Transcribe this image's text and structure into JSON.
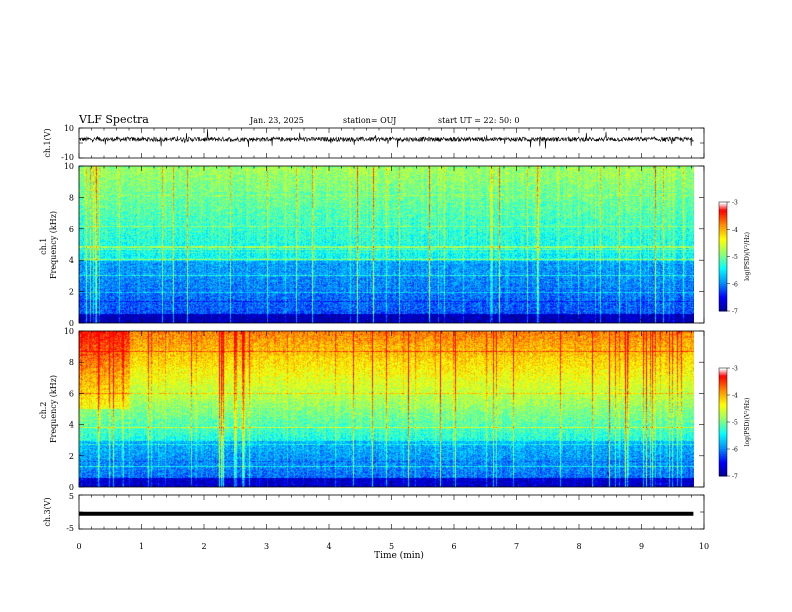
{
  "header": {
    "title": "VLF Spectra",
    "date": "Jan. 23, 2025",
    "station": "station= OUJ",
    "start": "start  UT =   22: 50: 0"
  },
  "chart_data": [
    {
      "type": "line",
      "panel": "ch1-waveform",
      "ylabel": "ch.1(V)",
      "ylim": [
        -10,
        10
      ],
      "y_tick_labels": [
        "10",
        "-10"
      ],
      "baseline": 2.5,
      "noise_amplitude": 1.5
    },
    {
      "type": "heatmap",
      "panel": "ch1-spectrogram",
      "ylabel": "ch.1\nFrequency (kHz)",
      "ylim": [
        0,
        10
      ],
      "y_tick_labels": [
        "0",
        "2",
        "4",
        "6",
        "8",
        "10"
      ],
      "colorbar": {
        "label": "log(PSD)(V²/Hz)",
        "range": [
          -7,
          -3
        ],
        "tick_labels": [
          "-3",
          "-4",
          "-5",
          "-6",
          "-7"
        ]
      }
    },
    {
      "type": "heatmap",
      "panel": "ch2-spectrogram",
      "ylabel": "ch.2\nFrequency (kHz)",
      "ylim": [
        0,
        10
      ],
      "y_tick_labels": [
        "0",
        "2",
        "4",
        "6",
        "8",
        "10"
      ],
      "colorbar": {
        "label": "log(PSD)(V²/Hz)",
        "range": [
          -7,
          -3
        ],
        "tick_labels": [
          "-3",
          "-4",
          "-5",
          "-6",
          "-7"
        ]
      }
    },
    {
      "type": "line",
      "panel": "ch3-waveform",
      "ylabel": "ch.3(V)",
      "ylim": [
        -5,
        5
      ],
      "y_tick_labels": [
        "5",
        "-5"
      ],
      "constant_value": -0.5
    }
  ],
  "x_axis": {
    "label": "Time (min)",
    "xlim": [
      0,
      10
    ],
    "tick_labels": [
      "0",
      "1",
      "2",
      "3",
      "4",
      "5",
      "6",
      "7",
      "8",
      "9",
      "10"
    ],
    "data_end": 9.83
  },
  "colors": {
    "colormap": [
      "#000090",
      "#0000ff",
      "#0090ff",
      "#00ffff",
      "#90ff70",
      "#ffff00",
      "#ff8c00",
      "#ff0000",
      "#ffffff"
    ]
  }
}
